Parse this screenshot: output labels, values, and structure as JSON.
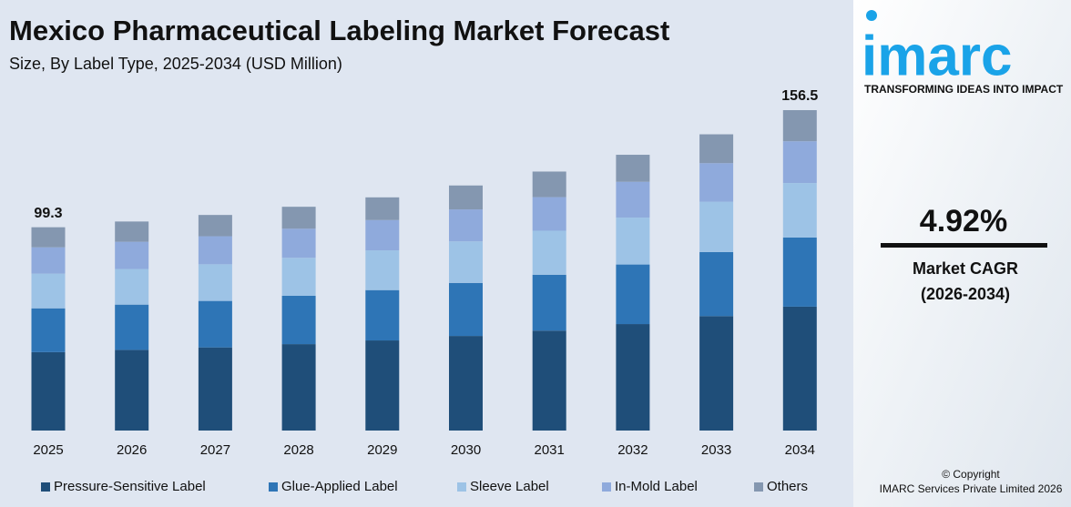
{
  "chart_data": {
    "type": "stacked_bar",
    "title": "Mexico Pharmaceutical Labeling Market Forecast",
    "subtitle": "Size, By Label Type, 2025-2034 (USD Million)",
    "categories": [
      "2025",
      "2026",
      "2027",
      "2028",
      "2029",
      "2030",
      "2031",
      "2032",
      "2033",
      "2034"
    ],
    "series": [
      {
        "name": "Pressure-Sensitive Label",
        "color": "#1f4e79",
        "values": [
          38.3,
          39.4,
          40.6,
          42.2,
          44.0,
          46.2,
          48.8,
          52.0,
          55.9,
          60.5
        ]
      },
      {
        "name": "Glue-Applied Label",
        "color": "#2e75b6",
        "values": [
          21.4,
          22.1,
          22.7,
          23.6,
          24.6,
          25.9,
          27.3,
          29.1,
          31.3,
          33.8
        ]
      },
      {
        "name": "Sleeve Label",
        "color": "#9dc3e6",
        "values": [
          16.9,
          17.4,
          17.9,
          18.6,
          19.4,
          20.3,
          21.5,
          22.9,
          24.6,
          26.6
        ]
      },
      {
        "name": "In-Mold Label",
        "color": "#8faadc",
        "values": [
          12.9,
          13.3,
          13.7,
          14.2,
          14.8,
          15.6,
          16.4,
          17.5,
          18.8,
          20.4
        ]
      },
      {
        "name": "Others",
        "color": "#8497b0",
        "values": [
          9.8,
          9.9,
          10.4,
          10.7,
          11.1,
          11.7,
          12.5,
          13.2,
          14.1,
          15.2
        ]
      }
    ],
    "annotations": [
      {
        "x": "2025",
        "value": 99.3
      },
      {
        "x": "2034",
        "value": 156.5
      }
    ],
    "legend": "bottom"
  },
  "sidebar": {
    "logo": "imarc",
    "tagline": "TRANSFORMING IDEAS INTO IMPACT",
    "cagr": "4.92%",
    "cagr_label": "Market CAGR",
    "cagr_period": "(2026-2034)",
    "copyright": "© Copyright",
    "company": "IMARC Services Private Limited 2026"
  }
}
